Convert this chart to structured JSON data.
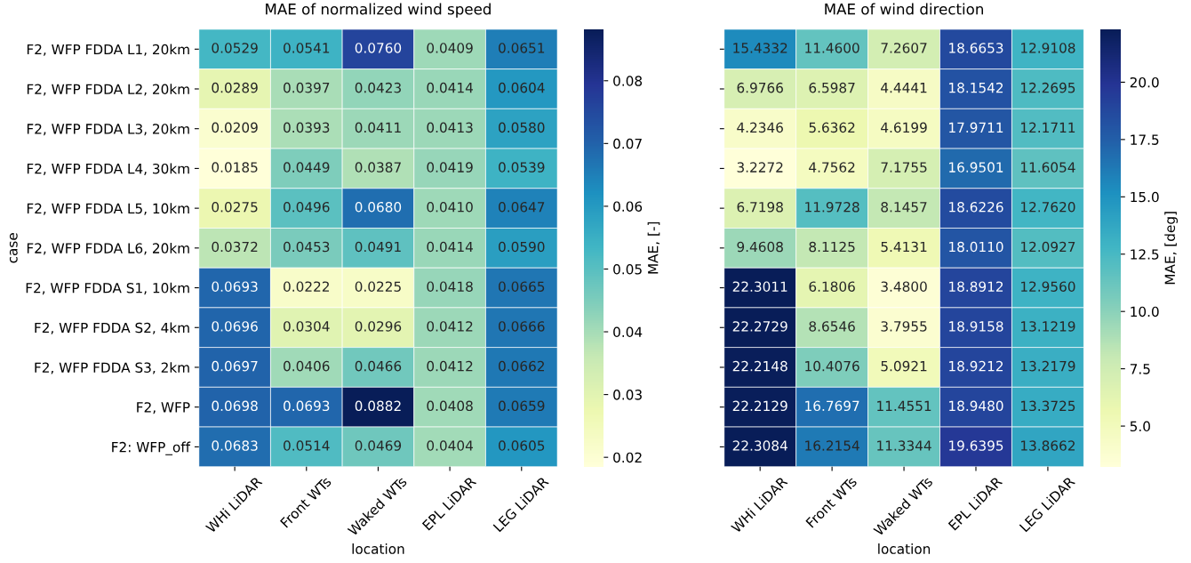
{
  "chart_data": [
    {
      "type": "heatmap",
      "title": "MAE of normalized wind speed",
      "xlabel": "location",
      "ylabel": "case",
      "clabel": "MAE, [-]",
      "categories": [
        "WHi LiDAR",
        "Front WTs",
        "Waked WTs",
        "EPL LiDAR",
        "LEG LiDAR"
      ],
      "y_categories": [
        "F2, WFP FDDA L1, 20km",
        "F2, WFP FDDA L2, 20km",
        "F2, WFP FDDA L3, 20km",
        "F2, WFP FDDA L4, 30km",
        "F2, WFP FDDA L5, 10km",
        "F2, WFP FDDA L6, 20km",
        "F2, WFP FDDA S1, 10km",
        "F2, WFP FDDA S2, 4km",
        "F2, WFP FDDA S3, 2km",
        "F2, WFP",
        "F2: WFP_off"
      ],
      "cells": [
        [
          0.0529,
          0.0541,
          0.076,
          0.0409,
          0.0651
        ],
        [
          0.0289,
          0.0397,
          0.0423,
          0.0414,
          0.0604
        ],
        [
          0.0209,
          0.0393,
          0.0411,
          0.0413,
          0.058
        ],
        [
          0.0185,
          0.0449,
          0.0387,
          0.0419,
          0.0539
        ],
        [
          0.0275,
          0.0496,
          0.068,
          0.041,
          0.0647
        ],
        [
          0.0372,
          0.0453,
          0.0491,
          0.0414,
          0.059
        ],
        [
          0.0693,
          0.0222,
          0.0225,
          0.0418,
          0.0665
        ],
        [
          0.0696,
          0.0304,
          0.0296,
          0.0412,
          0.0666
        ],
        [
          0.0697,
          0.0406,
          0.0466,
          0.0412,
          0.0662
        ],
        [
          0.0698,
          0.0693,
          0.0882,
          0.0408,
          0.0659
        ],
        [
          0.0683,
          0.0514,
          0.0469,
          0.0404,
          0.0605
        ]
      ],
      "cell_labels": [
        [
          "0.0529",
          "0.0541",
          "0.0760",
          "0.0409",
          "0.0651"
        ],
        [
          "0.0289",
          "0.0397",
          "0.0423",
          "0.0414",
          "0.0604"
        ],
        [
          "0.0209",
          "0.0393",
          "0.0411",
          "0.0413",
          "0.0580"
        ],
        [
          "0.0185",
          "0.0449",
          "0.0387",
          "0.0419",
          "0.0539"
        ],
        [
          "0.0275",
          "0.0496",
          "0.0680",
          "0.0410",
          "0.0647"
        ],
        [
          "0.0372",
          "0.0453",
          "0.0491",
          "0.0414",
          "0.0590"
        ],
        [
          "0.0693",
          "0.0222",
          "0.0225",
          "0.0418",
          "0.0665"
        ],
        [
          "0.0696",
          "0.0304",
          "0.0296",
          "0.0412",
          "0.0666"
        ],
        [
          "0.0697",
          "0.0406",
          "0.0466",
          "0.0412",
          "0.0662"
        ],
        [
          "0.0698",
          "0.0693",
          "0.0882",
          "0.0408",
          "0.0659"
        ],
        [
          "0.0683",
          "0.0514",
          "0.0469",
          "0.0404",
          "0.0605"
        ]
      ],
      "clim": [
        0.0185,
        0.0882
      ],
      "cticks": [
        {
          "value": 0.02,
          "label": "0.02"
        },
        {
          "value": 0.03,
          "label": "0.03"
        },
        {
          "value": 0.04,
          "label": "0.04"
        },
        {
          "value": 0.05,
          "label": "0.05"
        },
        {
          "value": 0.06,
          "label": "0.06"
        },
        {
          "value": 0.07,
          "label": "0.07"
        },
        {
          "value": 0.08,
          "label": "0.08"
        }
      ]
    },
    {
      "type": "heatmap",
      "title": "MAE of wind direction",
      "xlabel": "location",
      "clabel": "MAE, [deg]",
      "tick_labels": "x",
      "categories": [
        "WHi LiDAR",
        "Front WTs",
        "Waked WTs",
        "EPL LiDAR",
        "LEG LiDAR"
      ],
      "y_categories": [
        null,
        null,
        null,
        null,
        null,
        null,
        null,
        null,
        null,
        null,
        null
      ],
      "cells": [
        [
          15.4332,
          11.46,
          7.2607,
          18.6653,
          12.9108
        ],
        [
          6.9766,
          6.5987,
          4.4441,
          18.1542,
          12.2695
        ],
        [
          4.2346,
          5.6362,
          4.6199,
          17.9711,
          12.1711
        ],
        [
          3.2272,
          4.7562,
          7.1755,
          16.9501,
          11.6054
        ],
        [
          6.7198,
          11.9728,
          8.1457,
          18.6226,
          12.762
        ],
        [
          9.4608,
          8.1125,
          5.4131,
          18.011,
          12.0927
        ],
        [
          22.3011,
          6.1806,
          3.48,
          18.8912,
          12.956
        ],
        [
          22.2729,
          8.6546,
          3.7955,
          18.9158,
          13.1219
        ],
        [
          22.2148,
          10.4076,
          5.0921,
          18.9212,
          13.2179
        ],
        [
          22.2129,
          16.7697,
          11.4551,
          18.948,
          13.3725
        ],
        [
          22.3084,
          16.2154,
          11.3344,
          19.6395,
          13.8662
        ]
      ],
      "cell_labels": [
        [
          "15.4332",
          "11.4600",
          "7.2607",
          "18.6653",
          "12.9108"
        ],
        [
          "6.9766",
          "6.5987",
          "4.4441",
          "18.1542",
          "12.2695"
        ],
        [
          "4.2346",
          "5.6362",
          "4.6199",
          "17.9711",
          "12.1711"
        ],
        [
          "3.2272",
          "4.7562",
          "7.1755",
          "16.9501",
          "11.6054"
        ],
        [
          "6.7198",
          "11.9728",
          "8.1457",
          "18.6226",
          "12.7620"
        ],
        [
          "9.4608",
          "8.1125",
          "5.4131",
          "18.0110",
          "12.0927"
        ],
        [
          "22.3011",
          "6.1806",
          "3.4800",
          "18.8912",
          "12.9560"
        ],
        [
          "22.2729",
          "8.6546",
          "3.7955",
          "18.9158",
          "13.1219"
        ],
        [
          "22.2148",
          "10.4076",
          "5.0921",
          "18.9212",
          "13.2179"
        ],
        [
          "22.2129",
          "16.7697",
          "11.4551",
          "18.9480",
          "13.3725"
        ],
        [
          "22.3084",
          "16.2154",
          "11.3344",
          "19.6395",
          "13.8662"
        ]
      ],
      "clim": [
        3.2272,
        22.3084
      ],
      "cticks": [
        {
          "value": 5,
          "label": "5.0"
        },
        {
          "value": 7.5,
          "label": "7.5"
        },
        {
          "value": 10,
          "label": "10.0"
        },
        {
          "value": 12.5,
          "label": "12.5"
        },
        {
          "value": 15,
          "label": "15.0"
        },
        {
          "value": 17.5,
          "label": "17.5"
        },
        {
          "value": 20,
          "label": "20.0"
        }
      ]
    }
  ]
}
